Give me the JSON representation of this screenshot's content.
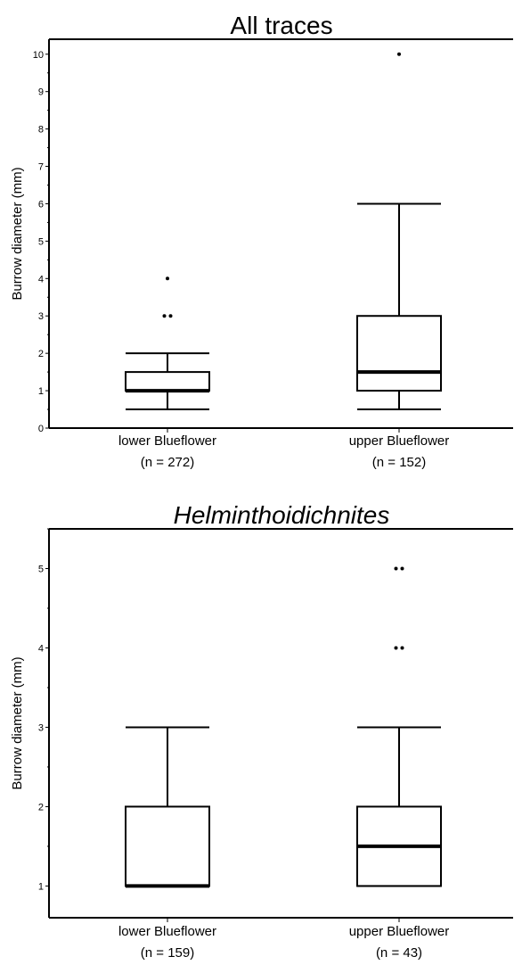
{
  "chart_data": [
    {
      "type": "boxplot",
      "title": "All traces",
      "title_italic": false,
      "ylabel": "Burrow diameter (mm)",
      "ylim": [
        0,
        10.4
      ],
      "yticks": [
        0,
        1,
        2,
        3,
        4,
        5,
        6,
        7,
        8,
        9,
        10
      ],
      "grid": false,
      "groups": [
        {
          "label": "lower Blueflower",
          "n_label": "(n = 272)",
          "whisker_low": 0.5,
          "q1": 1,
          "median": 1,
          "q3": 1.5,
          "whisker_high": 2,
          "outliers": [
            3,
            3,
            4
          ]
        },
        {
          "label": "upper Blueflower",
          "n_label": "(n = 152)",
          "whisker_low": 0.5,
          "q1": 1,
          "median": 1.5,
          "q3": 3,
          "whisker_high": 6,
          "outliers": [
            10
          ]
        }
      ]
    },
    {
      "type": "boxplot",
      "title": "Helminthoidichnites",
      "title_italic": true,
      "ylabel": "Burrow diameter (mm)",
      "ylim": [
        0.6,
        5.5
      ],
      "yticks": [
        1,
        2,
        3,
        4,
        5
      ],
      "grid": false,
      "groups": [
        {
          "label": "lower Blueflower",
          "n_label": "(n = 159)",
          "whisker_low": 1,
          "q1": 1,
          "median": 1,
          "q3": 2,
          "whisker_high": 3,
          "outliers": []
        },
        {
          "label": "upper Blueflower",
          "n_label": "(n = 43)",
          "whisker_low": 1,
          "q1": 1,
          "median": 1.5,
          "q3": 2,
          "whisker_high": 3,
          "outliers": [
            4,
            4,
            5,
            5
          ]
        }
      ]
    }
  ]
}
